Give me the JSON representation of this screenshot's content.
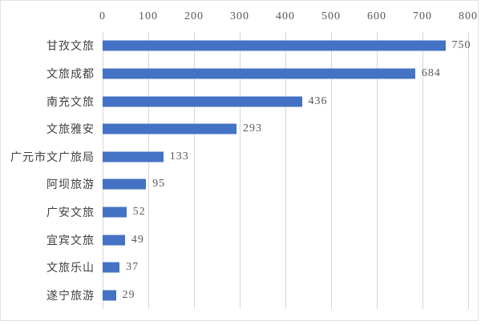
{
  "chart_data": {
    "type": "bar",
    "orientation": "horizontal",
    "categories": [
      "甘孜文旅",
      "文旅成都",
      "南充文旅",
      "文旅雅安",
      "广元市文广旅局",
      "阿坝旅游",
      "广安文旅",
      "宜宾文旅",
      "文旅乐山",
      "遂宁旅游"
    ],
    "values": [
      750,
      684,
      436,
      293,
      133,
      95,
      52,
      49,
      37,
      29
    ],
    "title": "",
    "xlabel": "",
    "ylabel": "",
    "xlim": [
      0,
      800
    ],
    "x_ticks": [
      0,
      100,
      200,
      300,
      400,
      500,
      600,
      700,
      800
    ],
    "grid": true,
    "data_labels": true,
    "legend": "none",
    "colors": {
      "bar": "#4472c4",
      "gridline": "#d6d6d6",
      "category_text": "#3f3f3f",
      "tick_and_value_text": "#595959",
      "frame_border": "#e1e1e1",
      "background": "#ffffff"
    }
  }
}
